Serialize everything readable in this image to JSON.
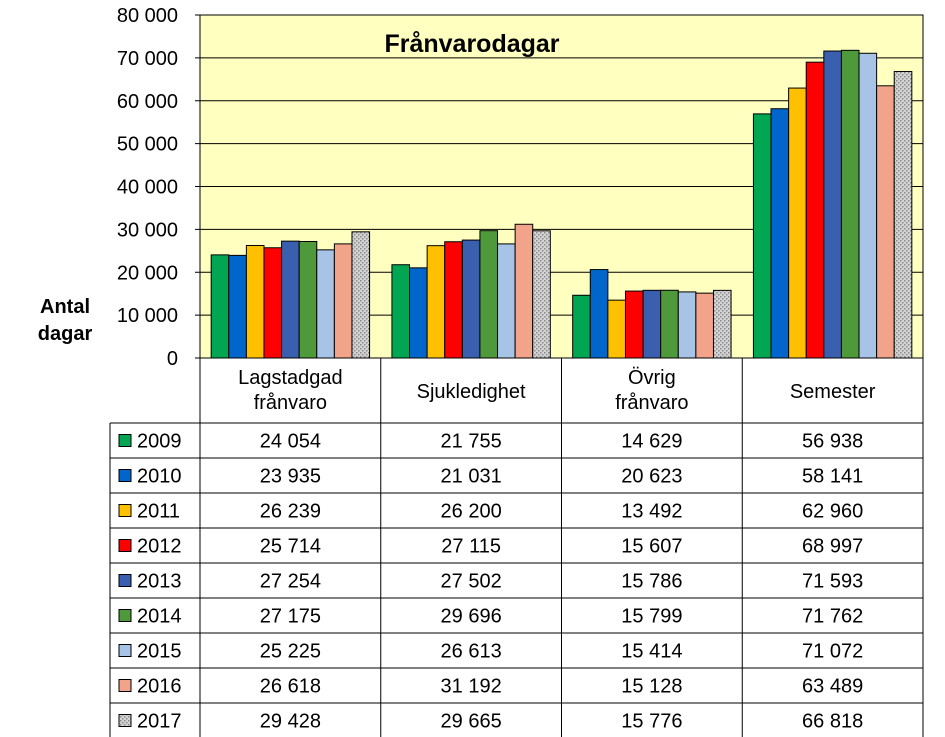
{
  "chart_data": {
    "type": "bar",
    "title": "Frånvarodagar",
    "ylabel_lines": [
      "Antal",
      "dagar"
    ],
    "categories": [
      [
        "Lagstadgad",
        "frånvaro"
      ],
      [
        "Sjukledighet"
      ],
      [
        "Övrig",
        "frånvaro"
      ],
      [
        "Semester"
      ]
    ],
    "ylim": [
      0,
      80000
    ],
    "y_ticks": [
      "0",
      "10 000",
      "20 000",
      "30 000",
      "40 000",
      "50 000",
      "60 000",
      "70 000",
      "80 000"
    ],
    "grid": true,
    "legend": "data-table",
    "plot_background": "#FFFFC0",
    "series": [
      {
        "name": "2009",
        "color": "#00A651",
        "values": [
          24054,
          21755,
          14629,
          56938
        ],
        "labels": [
          "24 054",
          "21 755",
          "14 629",
          "56 938"
        ]
      },
      {
        "name": "2010",
        "color": "#0066CC",
        "values": [
          23935,
          21031,
          20623,
          58141
        ],
        "labels": [
          "23 935",
          "21 031",
          "20 623",
          "58 141"
        ]
      },
      {
        "name": "2011",
        "color": "#FFC000",
        "values": [
          26239,
          26200,
          13492,
          62960
        ],
        "labels": [
          "26 239",
          "26 200",
          "13 492",
          "62 960"
        ]
      },
      {
        "name": "2012",
        "color": "#FF0000",
        "values": [
          25714,
          27115,
          15607,
          68997
        ],
        "labels": [
          "25 714",
          "27 115",
          "15 607",
          "68 997"
        ]
      },
      {
        "name": "2013",
        "color": "#3A5FAE",
        "values": [
          27254,
          27502,
          15786,
          71593
        ],
        "labels": [
          "27 254",
          "27 502",
          "15 786",
          "71 593"
        ]
      },
      {
        "name": "2014",
        "color": "#4E9A3A",
        "values": [
          27175,
          29696,
          15799,
          71762
        ],
        "labels": [
          "27 175",
          "29 696",
          "15 799",
          "71 762"
        ]
      },
      {
        "name": "2015",
        "color": "#A7C3E6",
        "values": [
          25225,
          26613,
          15414,
          71072
        ],
        "labels": [
          "25 225",
          "26 613",
          "15 414",
          "71 072"
        ]
      },
      {
        "name": "2016",
        "color": "#F2A48A",
        "values": [
          26618,
          31192,
          15128,
          63489
        ],
        "labels": [
          "26 618",
          "31 192",
          "15 128",
          "63 489"
        ]
      },
      {
        "name": "2017",
        "color": "#C0C0C0",
        "pattern": "dotted",
        "values": [
          29428,
          29665,
          15776,
          66818
        ],
        "labels": [
          "29 428",
          "29 665",
          "15 776",
          "66 818"
        ]
      }
    ]
  }
}
